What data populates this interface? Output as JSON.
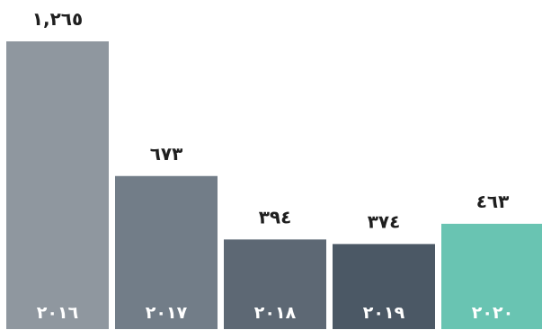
{
  "chart_data": {
    "type": "bar",
    "title": "",
    "xlabel": "",
    "ylabel": "",
    "ylim": [
      0,
      1265
    ],
    "grid": false,
    "categories": [
      "٢٠١٦",
      "٢٠١٧",
      "٢٠١٨",
      "٢٠١٩",
      "٢٠٢٠"
    ],
    "values": [
      1265,
      673,
      394,
      374,
      463
    ],
    "value_labels": [
      "١,٢٦٥",
      "٦٧٣",
      "٣٩٤",
      "٣٧٤",
      "٤٦٣"
    ],
    "colors": [
      "#8f979f",
      "#727d88",
      "#5d6874",
      "#4b5865",
      "#69c4b2"
    ]
  }
}
